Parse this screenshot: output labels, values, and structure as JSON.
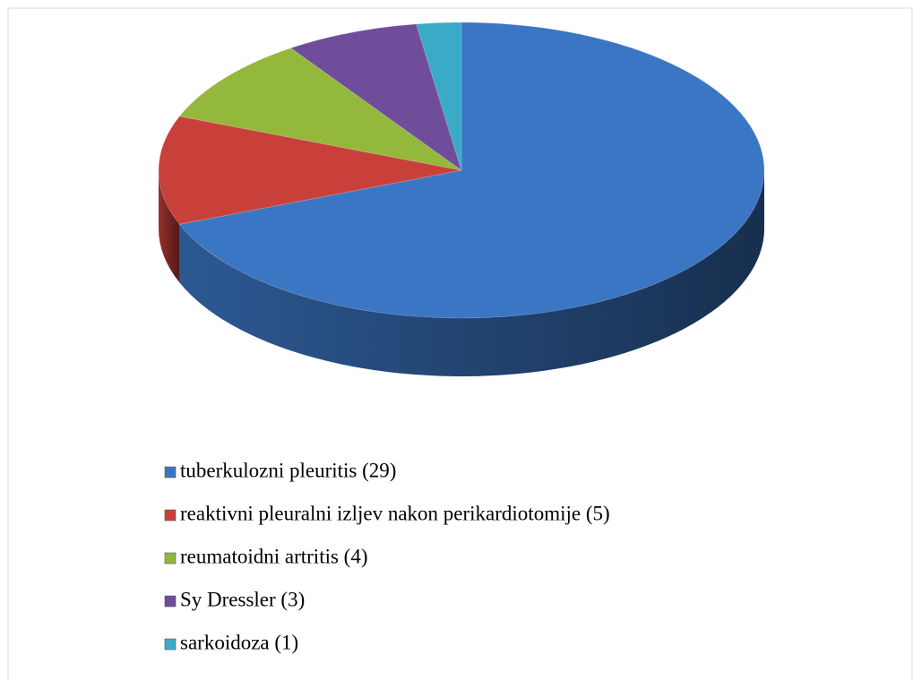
{
  "chart_data": {
    "type": "pie3d",
    "categories": [
      "tuberkulozni pleuritis (29)",
      "reaktivni pleuralni izljev nakon perikardiotomije (5)",
      "reumatoidni artritis (4)",
      "Sy Dressler (3)",
      "sarkoidoza (1)"
    ],
    "values": [
      29,
      5,
      4,
      3,
      1
    ],
    "colors": [
      "#3b76c4",
      "#c9403a",
      "#94b83c",
      "#6f4d9b",
      "#3aaac6"
    ],
    "legend": "bottom"
  }
}
